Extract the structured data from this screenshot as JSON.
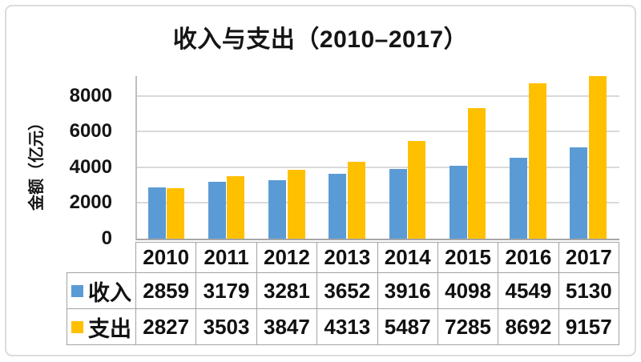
{
  "card": {
    "background": "#FFFFFF",
    "border_color": "#DBDBDB"
  },
  "chart_data": {
    "type": "bar",
    "title": "收入与支出（2010–2017）",
    "xlabel": "",
    "ylabel": "金额（亿元）",
    "categories": [
      "2010",
      "2011",
      "2012",
      "2013",
      "2014",
      "2015",
      "2016",
      "2017"
    ],
    "series": [
      {
        "key": "income",
        "name": "收入",
        "color": "#5B9BD5",
        "values": [
          2859,
          3179,
          3281,
          3652,
          3916,
          4098,
          4549,
          5130
        ]
      },
      {
        "key": "expense",
        "name": "支出",
        "color": "#FFC000",
        "values": [
          2827,
          3503,
          3847,
          4313,
          5487,
          7285,
          8692,
          9157
        ]
      }
    ],
    "ylim": [
      0,
      9100
    ],
    "yticks": [
      0,
      2000,
      4000,
      6000,
      8000
    ],
    "grid": true,
    "grid_color": "#D9D9D9",
    "axis_color": "#A6A6A6",
    "table_border_color": "#A3A3A3",
    "text_color": "#151515",
    "legend_position": "table-left"
  }
}
